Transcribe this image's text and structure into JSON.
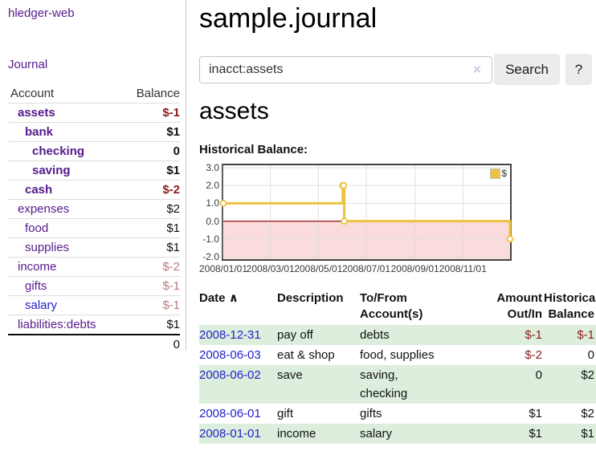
{
  "sidebar": {
    "brand": "hledger-web",
    "nav": {
      "journal": "Journal"
    },
    "accounts_table": {
      "headers": {
        "account": "Account",
        "balance": "Balance"
      },
      "rows": [
        {
          "name": "assets",
          "balance": "$-1",
          "level": 1
        },
        {
          "name": "bank",
          "balance": "$1",
          "level": 2
        },
        {
          "name": "checking",
          "balance": "0",
          "level": 3
        },
        {
          "name": "saving",
          "balance": "$1",
          "level": 3
        },
        {
          "name": "cash",
          "balance": "$-2",
          "level": 2
        },
        {
          "name": "expenses",
          "balance": "$2",
          "level": 1
        },
        {
          "name": "food",
          "balance": "$1",
          "level": 2
        },
        {
          "name": "supplies",
          "balance": "$1",
          "level": 2
        },
        {
          "name": "income",
          "balance": "$-2",
          "level": 1
        },
        {
          "name": "gifts",
          "balance": "$-1",
          "level": 2
        },
        {
          "name": "salary",
          "balance": "$-1",
          "level": 2
        },
        {
          "name": "liabilities:debts",
          "balance": "$1",
          "level": 1
        }
      ],
      "total": "0"
    }
  },
  "header": {
    "title": "sample.journal"
  },
  "search": {
    "query": "inacct:assets",
    "clear_icon": "×",
    "search_label": "Search",
    "help_label": "?"
  },
  "account_page": {
    "heading": "assets",
    "chart_title": "Historical Balance:"
  },
  "chart_data": {
    "type": "line",
    "title": "Historical Balance:",
    "step": true,
    "x_range": [
      "2008-01-01",
      "2008-12-31"
    ],
    "ylim": [
      -2,
      3
    ],
    "grid": true,
    "legend_position": "top-right",
    "legend": [
      {
        "label": "$",
        "color": "#edc240"
      }
    ],
    "series": [
      {
        "name": "$",
        "points": [
          {
            "date": "2008-01-01",
            "value": 1
          },
          {
            "date": "2008-06-01",
            "value": 2
          },
          {
            "date": "2008-06-02",
            "value": 2
          },
          {
            "date": "2008-06-03",
            "value": 0
          },
          {
            "date": "2008-12-31",
            "value": -1
          }
        ]
      }
    ],
    "y_ticks": [
      {
        "value": 3,
        "label": "3.0"
      },
      {
        "value": 2,
        "label": "2.0"
      },
      {
        "value": 1,
        "label": "1.0"
      },
      {
        "value": 0,
        "label": "0.0"
      },
      {
        "value": -1,
        "label": "-1.0"
      },
      {
        "value": -2,
        "label": "-2.0"
      }
    ],
    "x_ticks": [
      {
        "date": "2008-01-01",
        "label": "2008/01/01"
      },
      {
        "date": "2008-03-01",
        "label": "2008/03/01"
      },
      {
        "date": "2008-05-01",
        "label": "2008/05/01"
      },
      {
        "date": "2008-07-01",
        "label": "2008/07/01"
      },
      {
        "date": "2008-09-01",
        "label": "2008/09/01"
      },
      {
        "date": "2008-11-01",
        "label": "2008/11/01"
      }
    ],
    "line_color": "#edc240",
    "marker_fill": "#ffffff",
    "zero_line_color": "#991111",
    "negative_region_fill": "#fbdcdc",
    "grid_color": "#dcdcdc",
    "border_color": "#444444"
  },
  "register_table": {
    "sort_asc_icon": "∧",
    "headers": {
      "date": "Date",
      "description": "Description",
      "accounts": "To/From\nAccount(s)",
      "amount": "Amount\nOut/In",
      "balance": "Historical\nBalance"
    },
    "rows": [
      {
        "date": "2008-12-31",
        "description": "pay off",
        "accounts": "debts",
        "amount": "$-1",
        "balance": "$-1"
      },
      {
        "date": "2008-06-03",
        "description": "eat & shop",
        "accounts": "food, supplies",
        "amount": "$-2",
        "balance": "0"
      },
      {
        "date": "2008-06-02",
        "description": "save",
        "accounts": "saving,\nchecking",
        "amount": "0",
        "balance": "$2"
      },
      {
        "date": "2008-06-01",
        "description": "gift",
        "accounts": "gifts",
        "amount": "$1",
        "balance": "$2"
      },
      {
        "date": "2008-01-01",
        "description": "income",
        "accounts": "salary",
        "amount": "$1",
        "balance": "$1"
      }
    ]
  }
}
